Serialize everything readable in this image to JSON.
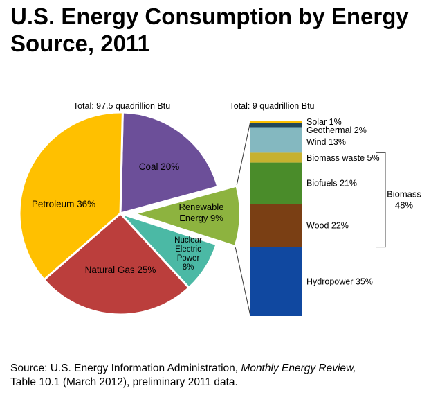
{
  "title": "U.S. Energy Consumption by Energy Source, 2011",
  "chart_data": [
    {
      "type": "pie",
      "total_label": "Total:  97.5 quadrillion Btu",
      "slices": [
        {
          "name": "Coal",
          "label": "Coal 20%",
          "value": 20,
          "color": "#6c4f99"
        },
        {
          "name": "Renewable Energy",
          "label_lines": [
            "Renewable",
            "Energy 9%"
          ],
          "value": 9,
          "color": "#8db33f",
          "exploded": true
        },
        {
          "name": "Nuclear Electric Power",
          "label_lines": [
            "Nuclear",
            "Electric",
            "Power",
            "8%"
          ],
          "value": 8,
          "color": "#4bb9a5"
        },
        {
          "name": "Natural Gas",
          "label": "Natural Gas 25%",
          "value": 25,
          "color": "#bb3e3c"
        },
        {
          "name": "Petroleum",
          "label": "Petroleum 36%",
          "value": 36,
          "color": "#ffc000"
        }
      ]
    },
    {
      "type": "bar",
      "stacked": true,
      "total_label": "Total:  9 quadrillion Btu",
      "segments": [
        {
          "name": "Solar",
          "label": "Solar  1%",
          "value": 1,
          "color": "#ffc000"
        },
        {
          "name": "Geothermal",
          "label": "Geothermal  2%",
          "value": 2,
          "color": "#24485a"
        },
        {
          "name": "Wind",
          "label": "Wind 13%",
          "value": 13,
          "color": "#84b8c0"
        },
        {
          "name": "Biomass waste",
          "label": "Biomass waste 5%",
          "value": 5,
          "color": "#c6b12f"
        },
        {
          "name": "Biofuels",
          "label": "Biofuels 21%",
          "value": 21,
          "color": "#4a8c2a"
        },
        {
          "name": "Wood",
          "label": "Wood  22%",
          "value": 22,
          "color": "#7a3f14"
        },
        {
          "name": "Hydropower",
          "label": "Hydropower  35%",
          "value": 35,
          "color": "#1048a0"
        }
      ],
      "group": {
        "label_lines": [
          "Biomass",
          "48%"
        ],
        "members": [
          "Biomass waste",
          "Biofuels",
          "Wood"
        ]
      }
    }
  ],
  "source": {
    "line1_prefix": "Source: U.S. Energy Information Administration, ",
    "line1_italic": "Monthly Energy Review,",
    "line2": "Table 10.1 (March 2012), preliminary 2011 data."
  }
}
